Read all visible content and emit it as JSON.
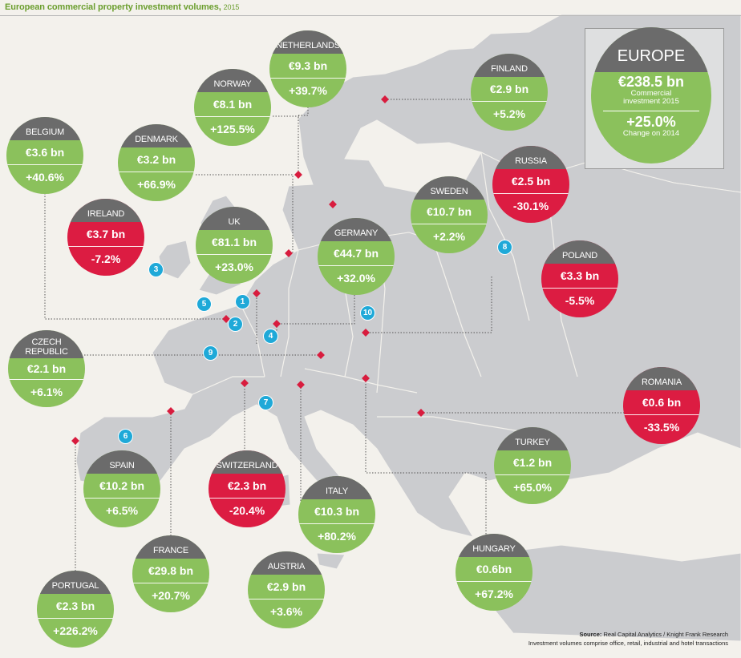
{
  "title": "European commercial property investment volumes,",
  "title_year": "2015",
  "colors": {
    "positive": "#8bc15c",
    "negative": "#dc1c42",
    "label": "#6b6b6b",
    "land": "#cbcccf",
    "sea": "#f3f1ec",
    "marker": "#d81c3e",
    "number": "#1fa9d8"
  },
  "europe": {
    "name": "EUROPE",
    "volume": "€238.5 bn",
    "volume_caption": "Commercial investment 2015",
    "change": "+25.0%",
    "change_caption": "Change on 2014"
  },
  "countries": [
    {
      "name": "NETHERLANDS",
      "volume": "€9.3 bn",
      "change": "+39.7%",
      "trend": "up"
    },
    {
      "name": "NORWAY",
      "volume": "€8.1 bn",
      "change": "+125.5%",
      "trend": "up"
    },
    {
      "name": "FINLAND",
      "volume": "€2.9 bn",
      "change": "+5.2%",
      "trend": "up"
    },
    {
      "name": "BELGIUM",
      "volume": "€3.6 bn",
      "change": "+40.6%",
      "trend": "up"
    },
    {
      "name": "DENMARK",
      "volume": "€3.2 bn",
      "change": "+66.9%",
      "trend": "up"
    },
    {
      "name": "RUSSIA",
      "volume": "€2.5 bn",
      "change": "-30.1%",
      "trend": "down"
    },
    {
      "name": "IRELAND",
      "volume": "€3.7 bn",
      "change": "-7.2%",
      "trend": "down"
    },
    {
      "name": "UK",
      "volume": "€81.1 bn",
      "change": "+23.0%",
      "trend": "up"
    },
    {
      "name": "SWEDEN",
      "volume": "€10.7 bn",
      "change": "+2.2%",
      "trend": "up"
    },
    {
      "name": "GERMANY",
      "volume": "€44.7 bn",
      "change": "+32.0%",
      "trend": "up"
    },
    {
      "name": "POLAND",
      "volume": "€3.3 bn",
      "change": "-5.5%",
      "trend": "down"
    },
    {
      "name": "CZECH REPUBLIC",
      "volume": "€2.1 bn",
      "change": "+6.1%",
      "trend": "up"
    },
    {
      "name": "ROMANIA",
      "volume": "€0.6 bn",
      "change": "-33.5%",
      "trend": "down"
    },
    {
      "name": "TURKEY",
      "volume": "€1.2 bn",
      "change": "+65.0%",
      "trend": "up"
    },
    {
      "name": "SPAIN",
      "volume": "€10.2 bn",
      "change": "+6.5%",
      "trend": "up"
    },
    {
      "name": "SWITZERLAND",
      "volume": "€2.3 bn",
      "change": "-20.4%",
      "trend": "down"
    },
    {
      "name": "ITALY",
      "volume": "€10.3 bn",
      "change": "+80.2%",
      "trend": "up"
    },
    {
      "name": "HUNGARY",
      "volume": "€0.6bn",
      "change": "+67.2%",
      "trend": "up"
    },
    {
      "name": "FRANCE",
      "volume": "€29.8 bn",
      "change": "+20.7%",
      "trend": "up"
    },
    {
      "name": "AUSTRIA",
      "volume": "€2.9 bn",
      "change": "+3.6%",
      "trend": "up"
    },
    {
      "name": "PORTUGAL",
      "volume": "€2.3 bn",
      "change": "+226.2%",
      "trend": "up"
    }
  ],
  "numbers": [
    "1",
    "2",
    "3",
    "4",
    "5",
    "6",
    "7",
    "8",
    "9",
    "10"
  ],
  "source_label": "Source:",
  "source_text": "Real Capital Analytics / Knight Frank Research",
  "footnote": "Investment volumes comprise office, retail, industrial and hotel transactions"
}
